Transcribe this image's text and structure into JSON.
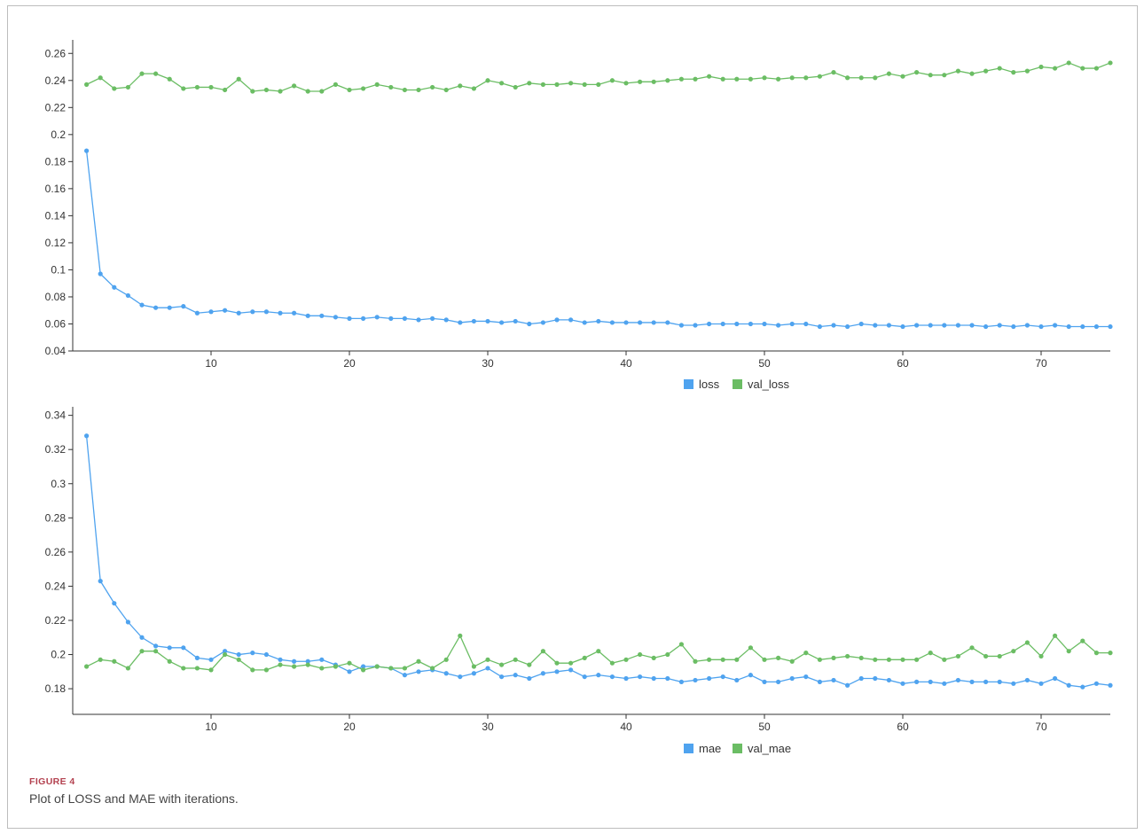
{
  "figure": {
    "label": "FIGURE 4",
    "caption": "Plot of LOSS and MAE with iterations."
  },
  "colors": {
    "series_a": "#4fa3ef",
    "series_b": "#6bbd64",
    "axis": "#333333"
  },
  "chart_data": [
    {
      "type": "line",
      "xlim": [
        0,
        75
      ],
      "ylim": [
        0.04,
        0.27
      ],
      "x_ticks": [
        10,
        20,
        30,
        40,
        50,
        60,
        70
      ],
      "y_ticks": [
        0.04,
        0.06,
        0.08,
        0.1,
        0.12,
        0.14,
        0.16,
        0.18,
        0.2,
        0.22,
        0.24,
        0.26
      ],
      "y_tick_labels": [
        "0.04",
        "0.06",
        "0.08",
        "0.1",
        "0.12",
        "0.14",
        "0.16",
        "0.18",
        "0.2",
        "0.22",
        "0.24",
        "0.26"
      ],
      "legend": "bottom-center",
      "x": [
        1,
        2,
        3,
        4,
        5,
        6,
        7,
        8,
        9,
        10,
        11,
        12,
        13,
        14,
        15,
        16,
        17,
        18,
        19,
        20,
        21,
        22,
        23,
        24,
        25,
        26,
        27,
        28,
        29,
        30,
        31,
        32,
        33,
        34,
        35,
        36,
        37,
        38,
        39,
        40,
        41,
        42,
        43,
        44,
        45,
        46,
        47,
        48,
        49,
        50,
        51,
        52,
        53,
        54,
        55,
        56,
        57,
        58,
        59,
        60,
        61,
        62,
        63,
        64,
        65,
        66,
        67,
        68,
        69,
        70,
        71,
        72,
        73,
        74,
        75
      ],
      "series": [
        {
          "name": "loss",
          "values": [
            0.188,
            0.097,
            0.087,
            0.081,
            0.074,
            0.072,
            0.072,
            0.073,
            0.068,
            0.069,
            0.07,
            0.068,
            0.069,
            0.069,
            0.068,
            0.068,
            0.066,
            0.066,
            0.065,
            0.064,
            0.064,
            0.065,
            0.064,
            0.064,
            0.063,
            0.064,
            0.063,
            0.061,
            0.062,
            0.062,
            0.061,
            0.062,
            0.06,
            0.061,
            0.063,
            0.063,
            0.061,
            0.062,
            0.061,
            0.061,
            0.061,
            0.061,
            0.061,
            0.059,
            0.059,
            0.06,
            0.06,
            0.06,
            0.06,
            0.06,
            0.059,
            0.06,
            0.06,
            0.058,
            0.059,
            0.058,
            0.06,
            0.059,
            0.059,
            0.058,
            0.059,
            0.059,
            0.059,
            0.059,
            0.059,
            0.058,
            0.059,
            0.058,
            0.059,
            0.058,
            0.059,
            0.058,
            0.058,
            0.058,
            0.058
          ]
        },
        {
          "name": "val_loss",
          "values": [
            0.237,
            0.242,
            0.234,
            0.235,
            0.245,
            0.245,
            0.241,
            0.234,
            0.235,
            0.235,
            0.233,
            0.241,
            0.232,
            0.233,
            0.232,
            0.236,
            0.232,
            0.232,
            0.237,
            0.233,
            0.234,
            0.237,
            0.235,
            0.233,
            0.233,
            0.235,
            0.233,
            0.236,
            0.234,
            0.24,
            0.238,
            0.235,
            0.238,
            0.237,
            0.237,
            0.238,
            0.237,
            0.237,
            0.24,
            0.238,
            0.239,
            0.239,
            0.24,
            0.241,
            0.241,
            0.243,
            0.241,
            0.241,
            0.241,
            0.242,
            0.241,
            0.242,
            0.242,
            0.243,
            0.246,
            0.242,
            0.242,
            0.242,
            0.245,
            0.243,
            0.246,
            0.244,
            0.244,
            0.247,
            0.245,
            0.247,
            0.249,
            0.246,
            0.247,
            0.25,
            0.249,
            0.253,
            0.249,
            0.249,
            0.253
          ]
        }
      ]
    },
    {
      "type": "line",
      "xlim": [
        0,
        75
      ],
      "ylim": [
        0.165,
        0.345
      ],
      "x_ticks": [
        10,
        20,
        30,
        40,
        50,
        60,
        70
      ],
      "y_ticks": [
        0.18,
        0.2,
        0.22,
        0.24,
        0.26,
        0.28,
        0.3,
        0.32,
        0.34
      ],
      "y_tick_labels": [
        "0.18",
        "0.2",
        "0.22",
        "0.24",
        "0.26",
        "0.28",
        "0.3",
        "0.32",
        "0.34"
      ],
      "legend": "bottom-center",
      "x": [
        1,
        2,
        3,
        4,
        5,
        6,
        7,
        8,
        9,
        10,
        11,
        12,
        13,
        14,
        15,
        16,
        17,
        18,
        19,
        20,
        21,
        22,
        23,
        24,
        25,
        26,
        27,
        28,
        29,
        30,
        31,
        32,
        33,
        34,
        35,
        36,
        37,
        38,
        39,
        40,
        41,
        42,
        43,
        44,
        45,
        46,
        47,
        48,
        49,
        50,
        51,
        52,
        53,
        54,
        55,
        56,
        57,
        58,
        59,
        60,
        61,
        62,
        63,
        64,
        65,
        66,
        67,
        68,
        69,
        70,
        71,
        72,
        73,
        74,
        75
      ],
      "series": [
        {
          "name": "mae",
          "values": [
            0.328,
            0.243,
            0.23,
            0.219,
            0.21,
            0.205,
            0.204,
            0.204,
            0.198,
            0.197,
            0.202,
            0.2,
            0.201,
            0.2,
            0.197,
            0.196,
            0.196,
            0.197,
            0.194,
            0.19,
            0.193,
            0.193,
            0.192,
            0.188,
            0.19,
            0.191,
            0.189,
            0.187,
            0.189,
            0.192,
            0.187,
            0.188,
            0.186,
            0.189,
            0.19,
            0.191,
            0.187,
            0.188,
            0.187,
            0.186,
            0.187,
            0.186,
            0.186,
            0.184,
            0.185,
            0.186,
            0.187,
            0.185,
            0.188,
            0.184,
            0.184,
            0.186,
            0.187,
            0.184,
            0.185,
            0.182,
            0.186,
            0.186,
            0.185,
            0.183,
            0.184,
            0.184,
            0.183,
            0.185,
            0.184,
            0.184,
            0.184,
            0.183,
            0.185,
            0.183,
            0.186,
            0.182,
            0.181,
            0.183,
            0.182
          ]
        },
        {
          "name": "val_mae",
          "values": [
            0.193,
            0.197,
            0.196,
            0.192,
            0.202,
            0.202,
            0.196,
            0.192,
            0.192,
            0.191,
            0.2,
            0.197,
            0.191,
            0.191,
            0.194,
            0.193,
            0.194,
            0.192,
            0.193,
            0.195,
            0.191,
            0.193,
            0.192,
            0.192,
            0.196,
            0.192,
            0.197,
            0.211,
            0.193,
            0.197,
            0.194,
            0.197,
            0.194,
            0.202,
            0.195,
            0.195,
            0.198,
            0.202,
            0.195,
            0.197,
            0.2,
            0.198,
            0.2,
            0.206,
            0.196,
            0.197,
            0.197,
            0.197,
            0.204,
            0.197,
            0.198,
            0.196,
            0.201,
            0.197,
            0.198,
            0.199,
            0.198,
            0.197,
            0.197,
            0.197,
            0.197,
            0.201,
            0.197,
            0.199,
            0.204,
            0.199,
            0.199,
            0.202,
            0.207,
            0.199,
            0.211,
            0.202,
            0.208,
            0.201,
            0.201
          ]
        }
      ]
    }
  ]
}
